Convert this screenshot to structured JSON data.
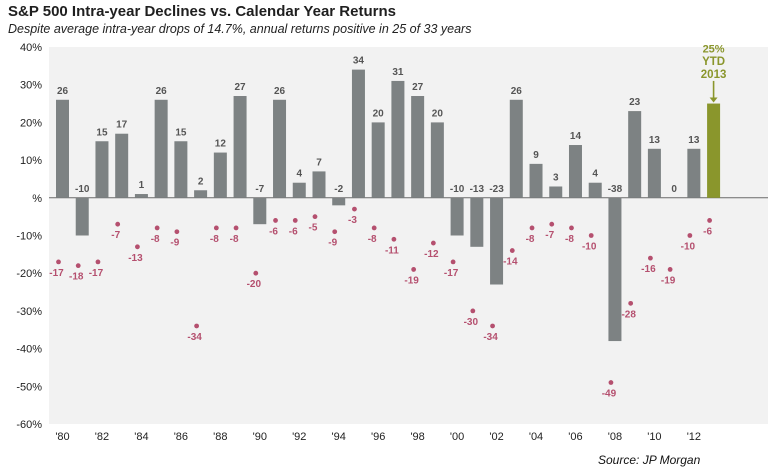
{
  "title": "S&P 500 Intra-year Declines vs. Calendar Year Returns",
  "subtitle": "Despite average intra-year drops of 14.7%, annual returns positive in 25 of 33 years",
  "source": "Source: JP Morgan",
  "colors": {
    "bar": "#7d8283",
    "highlight_bar": "#8a962c",
    "dot": "#b5506f",
    "axis_text": "#222222",
    "bar_label": "#555555",
    "plot_bg": "#f2f2f2"
  },
  "chart_data": {
    "type": "bar",
    "ylim": [
      -60,
      40
    ],
    "y_ticks": [
      "40%",
      "30%",
      "20%",
      "10%",
      "%",
      "-10%",
      "-20%",
      "-30%",
      "-40%",
      "-50%",
      "-60%"
    ],
    "y_tick_values": [
      40,
      30,
      20,
      10,
      0,
      -10,
      -20,
      -30,
      -40,
      -50,
      -60
    ],
    "x_tick_labels": [
      "'80",
      "'82",
      "'84",
      "'86",
      "'88",
      "'90",
      "'92",
      "'94",
      "'96",
      "'98",
      "'00",
      "'02",
      "'04",
      "'06",
      "'08",
      "'10",
      "'12"
    ],
    "years": [
      1980,
      1981,
      1982,
      1983,
      1984,
      1985,
      1986,
      1987,
      1988,
      1989,
      1990,
      1991,
      1992,
      1993,
      1994,
      1995,
      1996,
      1997,
      1998,
      1999,
      2000,
      2001,
      2002,
      2003,
      2004,
      2005,
      2006,
      2007,
      2008,
      2009,
      2010,
      2011,
      2012,
      2013
    ],
    "series": [
      {
        "name": "Calendar year return",
        "values": [
          26,
          -10,
          15,
          17,
          1,
          26,
          15,
          2,
          12,
          27,
          -7,
          26,
          4,
          7,
          -2,
          34,
          20,
          31,
          27,
          20,
          -10,
          -13,
          -23,
          26,
          9,
          3,
          14,
          4,
          -38,
          23,
          13,
          0,
          13,
          25
        ]
      },
      {
        "name": "Intra-year decline",
        "values": [
          -17,
          -18,
          -17,
          -7,
          -13,
          -8,
          -9,
          -34,
          -8,
          -8,
          -20,
          -6,
          -6,
          -5,
          -9,
          -3,
          -8,
          -11,
          -19,
          -12,
          -17,
          -30,
          -34,
          -14,
          -8,
          -7,
          -8,
          -10,
          -49,
          -28,
          -16,
          -19,
          -10,
          -6
        ]
      }
    ],
    "annotation": {
      "year": 2013,
      "lines": [
        "25%",
        "YTD",
        "2013"
      ]
    }
  }
}
